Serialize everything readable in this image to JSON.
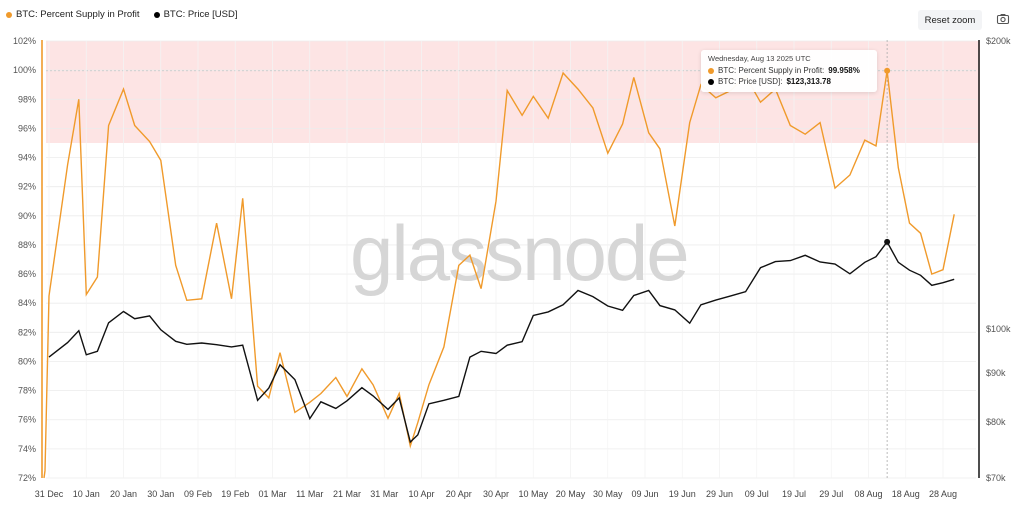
{
  "legend": {
    "items": [
      {
        "label": "BTC: Percent Supply in Profit",
        "color": "#f09a2b"
      },
      {
        "label": "BTC: Price [USD]",
        "color": "#000000"
      }
    ]
  },
  "toolbar": {
    "reset_zoom_label": "Reset zoom",
    "camera_icon": "camera-icon"
  },
  "watermark": "glassnode",
  "tooltip": {
    "date": "Wednesday, Aug 13 2025 UTC",
    "series": [
      {
        "label": "BTC: Percent Supply in Profit: ",
        "value": "99.958%",
        "color": "#f09a2b"
      },
      {
        "label": "BTC: Price [USD]: ",
        "value": "$123,313.78",
        "color": "#000000"
      }
    ]
  },
  "colors": {
    "supply_line": "#f09a2b",
    "price_line": "#111111",
    "highlight_band": "#fde4e4",
    "grid": "#eeeeee"
  },
  "chart_data": {
    "type": "line",
    "title": "",
    "legend_position": "top-left",
    "grid": true,
    "xlabel": "",
    "x_ticks": [
      "31 Dec",
      "10 Jan",
      "20 Jan",
      "30 Jan",
      "09 Feb",
      "19 Feb",
      "01 Mar",
      "11 Mar",
      "21 Mar",
      "31 Mar",
      "10 Apr",
      "20 Apr",
      "30 Apr",
      "10 May",
      "20 May",
      "30 May",
      "09 Jun",
      "19 Jun",
      "29 Jun",
      "09 Jul",
      "19 Jul",
      "29 Jul",
      "08 Aug",
      "18 Aug",
      "28 Aug"
    ],
    "y_left": {
      "label": "Percent Supply in Profit",
      "ticks": [
        "72%",
        "74%",
        "76%",
        "78%",
        "80%",
        "82%",
        "84%",
        "86%",
        "88%",
        "90%",
        "92%",
        "94%",
        "96%",
        "98%",
        "100%",
        "102%"
      ],
      "range": [
        72,
        102
      ]
    },
    "y_right": {
      "label": "Price [USD]",
      "scale": "log",
      "ticks": [
        "$70k",
        "$80k",
        "$90k",
        "$100k",
        "$200k"
      ],
      "range": [
        70000,
        200000
      ]
    },
    "highlight_band": {
      "from": 95,
      "to": 102,
      "axis": "left"
    },
    "reference_line": {
      "value": 99.958,
      "axis": "left",
      "style": "dotted"
    },
    "x": [
      "2024-12-31",
      "2025-01-05",
      "2025-01-08",
      "2025-01-10",
      "2025-01-13",
      "2025-01-16",
      "2025-01-20",
      "2025-01-23",
      "2025-01-27",
      "2025-01-30",
      "2025-02-03",
      "2025-02-06",
      "2025-02-10",
      "2025-02-14",
      "2025-02-18",
      "2025-02-21",
      "2025-02-25",
      "2025-02-28",
      "2025-03-03",
      "2025-03-07",
      "2025-03-11",
      "2025-03-14",
      "2025-03-18",
      "2025-03-21",
      "2025-03-25",
      "2025-03-28",
      "2025-04-01",
      "2025-04-04",
      "2025-04-07",
      "2025-04-09",
      "2025-04-12",
      "2025-04-16",
      "2025-04-20",
      "2025-04-23",
      "2025-04-26",
      "2025-04-30",
      "2025-05-03",
      "2025-05-07",
      "2025-05-10",
      "2025-05-14",
      "2025-05-18",
      "2025-05-22",
      "2025-05-26",
      "2025-05-30",
      "2025-06-03",
      "2025-06-06",
      "2025-06-10",
      "2025-06-13",
      "2025-06-17",
      "2025-06-21",
      "2025-06-24",
      "2025-06-28",
      "2025-07-02",
      "2025-07-06",
      "2025-07-10",
      "2025-07-14",
      "2025-07-18",
      "2025-07-22",
      "2025-07-26",
      "2025-07-30",
      "2025-08-03",
      "2025-08-07",
      "2025-08-10",
      "2025-08-13",
      "2025-08-16",
      "2025-08-19",
      "2025-08-22",
      "2025-08-25",
      "2025-08-28",
      "2025-08-31"
    ],
    "series": [
      {
        "name": "BTC: Percent Supply in Profit",
        "axis": "left",
        "color": "#f09a2b",
        "values": [
          84.5,
          93.5,
          98.0,
          84.6,
          85.8,
          96.2,
          98.7,
          96.2,
          95.1,
          93.8,
          86.6,
          84.2,
          84.3,
          89.5,
          84.3,
          91.2,
          78.3,
          77.5,
          80.6,
          76.5,
          77.2,
          77.8,
          78.9,
          77.6,
          79.5,
          78.4,
          76.1,
          77.8,
          74.2,
          75.8,
          78.4,
          81.0,
          86.6,
          87.3,
          85.0,
          91.0,
          98.6,
          96.9,
          98.2,
          96.7,
          99.8,
          98.7,
          97.4,
          94.3,
          96.3,
          99.5,
          95.7,
          94.6,
          89.3,
          96.4,
          99.0,
          98.1,
          98.6,
          99.6,
          97.8,
          98.7,
          96.2,
          95.6,
          96.4,
          91.9,
          92.8,
          95.2,
          94.8,
          99.958,
          93.3,
          89.5,
          88.8,
          86.0,
          86.3,
          90.1
        ]
      },
      {
        "name": "BTC: Price [USD]",
        "axis": "right",
        "color": "#111111",
        "values": [
          93500,
          96800,
          99600,
          94000,
          94800,
          101500,
          104300,
          102500,
          103200,
          99800,
          97100,
          96400,
          96700,
          96300,
          95800,
          96200,
          84300,
          86800,
          91800,
          88600,
          80700,
          84000,
          82700,
          84200,
          86900,
          85200,
          82500,
          84800,
          76300,
          77600,
          83600,
          84300,
          85100,
          93500,
          94800,
          94300,
          96200,
          97000,
          103300,
          104200,
          106000,
          109700,
          108100,
          105700,
          104600,
          108400,
          109700,
          105800,
          104700,
          101400,
          106000,
          107200,
          108300,
          109400,
          115900,
          117600,
          117900,
          119400,
          117500,
          116900,
          114200,
          117400,
          119000,
          123313.78,
          117400,
          115200,
          113800,
          111100,
          111800,
          112700
        ]
      }
    ]
  }
}
